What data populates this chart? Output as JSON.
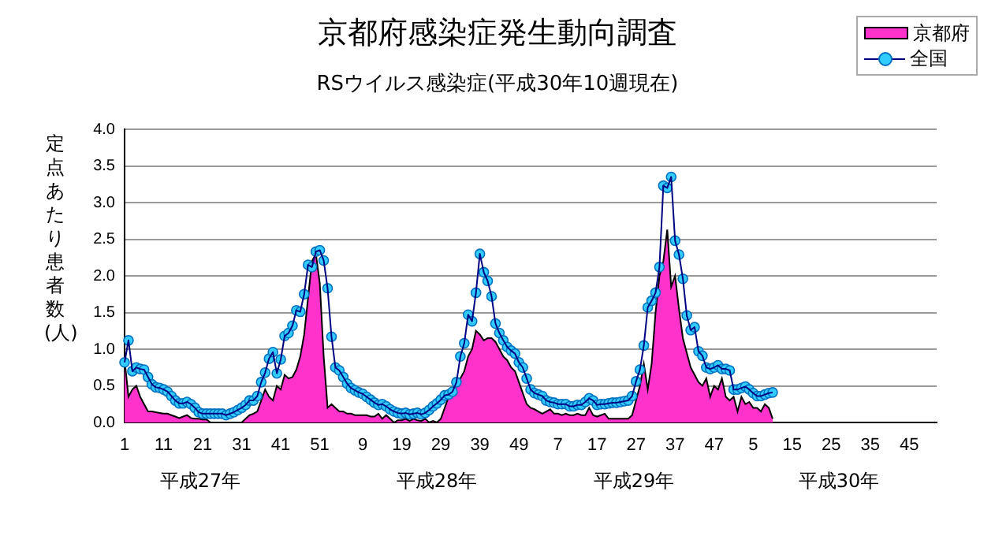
{
  "chart_data": {
    "type": "line",
    "title": "京都府感染症発生動向調査",
    "subtitle": "RSウイルス感染症(平成30年10週現在)",
    "ylabel": "定点あたり患者数(人)",
    "annotations": [
      "平成27年",
      "平成28年",
      "平成29年",
      "平成30年"
    ],
    "categories": [
      "1",
      null,
      null,
      null,
      null,
      null,
      null,
      null,
      null,
      null,
      "11",
      null,
      null,
      null,
      null,
      null,
      null,
      null,
      null,
      null,
      "21",
      null,
      null,
      null,
      null,
      null,
      null,
      null,
      null,
      null,
      "31",
      null,
      null,
      null,
      null,
      null,
      null,
      null,
      null,
      null,
      "41",
      null,
      null,
      null,
      null,
      null,
      null,
      null,
      null,
      null,
      "51",
      null,
      null,
      null,
      null,
      null,
      null,
      null,
      null,
      null,
      null,
      "9",
      null,
      null,
      null,
      null,
      null,
      null,
      null,
      null,
      null,
      "19",
      null,
      null,
      null,
      null,
      null,
      null,
      null,
      null,
      null,
      "29",
      null,
      null,
      null,
      null,
      null,
      null,
      null,
      null,
      null,
      "39",
      null,
      null,
      null,
      null,
      null,
      null,
      null,
      null,
      null,
      "49",
      null,
      null,
      null,
      null,
      null,
      null,
      null,
      null,
      null,
      "7",
      null,
      null,
      null,
      null,
      null,
      null,
      null,
      null,
      null,
      "17",
      null,
      null,
      null,
      null,
      null,
      null,
      null,
      null,
      null,
      "27",
      null,
      null,
      null,
      null,
      null,
      null,
      null,
      null,
      null,
      "37",
      null,
      null,
      null,
      null,
      null,
      null,
      null,
      null,
      null,
      "47",
      null,
      null,
      null,
      null,
      null,
      null,
      null,
      null,
      null,
      "5",
      null,
      null,
      null,
      null,
      null,
      null,
      null,
      null,
      null,
      "15",
      null,
      null,
      null,
      null,
      null,
      null,
      null,
      null,
      null,
      "25",
      null,
      null,
      null,
      null,
      null,
      null,
      null,
      null,
      null,
      "35",
      null,
      null,
      null,
      null,
      null,
      null,
      null,
      null,
      null,
      "45",
      null,
      null,
      null,
      null,
      null,
      null,
      null
    ],
    "series": [
      {
        "name": "京都府",
        "type": "area",
        "color": "#ff33cc",
        "values": [
          0.85,
          0.35,
          0.45,
          0.5,
          0.35,
          0.25,
          0.15,
          0.15,
          0.14,
          0.13,
          0.12,
          0.12,
          0.1,
          0.08,
          0.06,
          0.08,
          0.1,
          0.06,
          0.05,
          0.05,
          0.04,
          0.04,
          0,
          0,
          0,
          0,
          0,
          0,
          0,
          0,
          0,
          0.05,
          0.1,
          0.12,
          0.15,
          0.3,
          0.45,
          0.35,
          0.3,
          0.5,
          0.45,
          0.65,
          0.6,
          0.62,
          0.72,
          0.9,
          1.2,
          1.7,
          2.2,
          2.3,
          1.9,
          0.9,
          0.2,
          0.25,
          0.2,
          0.15,
          0.15,
          0.12,
          0.12,
          0.1,
          0.1,
          0.1,
          0.1,
          0.08,
          0.08,
          0.12,
          0.05,
          0.1,
          0.05,
          0,
          0.03,
          0.03,
          0.05,
          0.02,
          0.05,
          0.03,
          0.02,
          0.05,
          0,
          0.02,
          0,
          0.05,
          0.2,
          0.35,
          0.45,
          0.55,
          0.6,
          0.7,
          0.9,
          1.0,
          1.25,
          1.2,
          1.12,
          1.15,
          1.15,
          1.1,
          1.0,
          0.9,
          0.85,
          0.75,
          0.7,
          0.55,
          0.4,
          0.25,
          0.2,
          0.18,
          0.15,
          0.12,
          0.15,
          0.18,
          0.12,
          0.12,
          0.1,
          0.12,
          0.1,
          0.1,
          0.12,
          0.1,
          0.1,
          0.2,
          0.1,
          0.08,
          0.1,
          0.12,
          0.05,
          0.05,
          0.05,
          0.05,
          0.05,
          0.05,
          0.1,
          0.3,
          0.5,
          0.8,
          0.45,
          0.8,
          1.5,
          2.0,
          2.2,
          2.63,
          1.85,
          2.0,
          1.55,
          1.15,
          0.95,
          0.75,
          0.65,
          0.55,
          0.5,
          0.6,
          0.35,
          0.5,
          0.45,
          0.6,
          0.35,
          0.3,
          0.35,
          0.15,
          0.35,
          0.25,
          0.28,
          0.2,
          0.2,
          0.15,
          0.25,
          0.2,
          0.05,
          null,
          null,
          null,
          null,
          null,
          null,
          null,
          null,
          null,
          null,
          null,
          null,
          null,
          null,
          null,
          null,
          null,
          null,
          null,
          null,
          null,
          null,
          null,
          null,
          null,
          null,
          null,
          null,
          null,
          null,
          null,
          null,
          null,
          null,
          null,
          null,
          null,
          null,
          null,
          null,
          null,
          null
        ]
      },
      {
        "name": "全国",
        "marker": "circle",
        "color": "#33ccff",
        "values": [
          0.82,
          1.12,
          0.7,
          0.75,
          0.73,
          0.72,
          0.62,
          0.52,
          0.48,
          0.47,
          0.45,
          0.42,
          0.36,
          0.3,
          0.26,
          0.26,
          0.28,
          0.25,
          0.2,
          0.14,
          0.12,
          0.12,
          0.12,
          0.12,
          0.12,
          0.12,
          0.1,
          0.12,
          0.14,
          0.17,
          0.2,
          0.24,
          0.3,
          0.3,
          0.36,
          0.55,
          0.68,
          0.87,
          0.96,
          0.67,
          0.86,
          1.18,
          1.22,
          1.32,
          1.53,
          1.51,
          1.75,
          2.15,
          2.12,
          2.33,
          2.35,
          2.21,
          1.83,
          1.17,
          0.75,
          0.71,
          0.62,
          0.53,
          0.47,
          0.44,
          0.41,
          0.39,
          0.35,
          0.31,
          0.27,
          0.24,
          0.25,
          0.22,
          0.18,
          0.15,
          0.13,
          0.12,
          0.13,
          0.11,
          0.12,
          0.13,
          0.11,
          0.13,
          0.17,
          0.22,
          0.26,
          0.31,
          0.37,
          0.38,
          0.42,
          0.55,
          0.9,
          1.08,
          1.47,
          1.38,
          1.77,
          2.3,
          2.05,
          1.93,
          1.72,
          1.35,
          1.22,
          1.12,
          1.03,
          0.98,
          0.94,
          0.82,
          0.75,
          0.6,
          0.45,
          0.4,
          0.38,
          0.36,
          0.3,
          0.28,
          0.27,
          0.25,
          0.25,
          0.25,
          0.22,
          0.22,
          0.24,
          0.24,
          0.28,
          0.33,
          0.3,
          0.24,
          0.25,
          0.25,
          0.26,
          0.27,
          0.27,
          0.28,
          0.29,
          0.3,
          0.36,
          0.56,
          0.72,
          1.05,
          1.57,
          1.66,
          1.77,
          2.12,
          3.23,
          3.2,
          3.35,
          2.48,
          2.29,
          1.96,
          1.46,
          1.26,
          1.3,
          0.97,
          0.91,
          0.75,
          0.73,
          0.75,
          0.78,
          0.73,
          0.73,
          0.71,
          0.45,
          0.45,
          0.47,
          0.49,
          0.45,
          0.4,
          0.36,
          0.36,
          0.38,
          0.4,
          0.41,
          null,
          null,
          null,
          null,
          null,
          null,
          null,
          null,
          null,
          null,
          null,
          null,
          null,
          null,
          null,
          null,
          null,
          null,
          null,
          null,
          null,
          null,
          null,
          null,
          null,
          null,
          null,
          null,
          null,
          null,
          null,
          null,
          null,
          null,
          null,
          null,
          null,
          null,
          null,
          null,
          null,
          null
        ]
      }
    ],
    "ylim": [
      0,
      4
    ],
    "yticks": [
      {
        "value": 0,
        "label": "0.0"
      },
      {
        "value": 0.5,
        "label": "0.5"
      },
      {
        "value": 1,
        "label": "1.0"
      },
      {
        "value": 1.5,
        "label": "1.5"
      },
      {
        "value": 2,
        "label": "2.0"
      },
      {
        "value": 2.5,
        "label": "2.5"
      },
      {
        "value": 3,
        "label": "3.0"
      },
      {
        "value": 3.5,
        "label": "3.5"
      },
      {
        "value": 4,
        "label": "4.0"
      }
    ],
    "grid": "y",
    "legend": "top right"
  }
}
